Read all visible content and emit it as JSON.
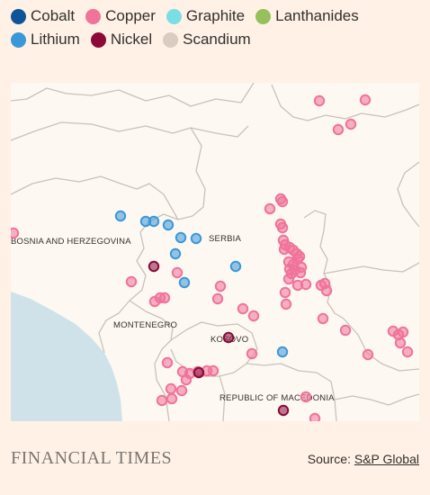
{
  "legend": [
    {
      "label": "Cobalt",
      "color": "#0f5499"
    },
    {
      "label": "Copper",
      "color": "#f0739a"
    },
    {
      "label": "Graphite",
      "color": "#78dfe3"
    },
    {
      "label": "Lanthanides",
      "color": "#96c05a"
    },
    {
      "label": "Lithium",
      "color": "#3b98d8"
    },
    {
      "label": "Nickel",
      "color": "#8b0a3a"
    },
    {
      "label": "Scandium",
      "color": "#d9cdc2"
    }
  ],
  "map": {
    "labels": {
      "bosnia": "BOSNIA AND HERZEGOVINA",
      "serbia": "SERBIA",
      "montenegro": "MONTENEGRO",
      "kosovo": "KOSOVO",
      "macedonia": "REPUBLIC OF MACEDONIA"
    },
    "colors": {
      "land": "#fdf8f2",
      "sea": "#cfe2ea",
      "border": "#c9c2ba"
    }
  },
  "sites": {
    "copper": [
      [
        343,
        20
      ],
      [
        394,
        19
      ],
      [
        364,
        52
      ],
      [
        378,
        46
      ],
      [
        3,
        167
      ],
      [
        288,
        140
      ],
      [
        300,
        129
      ],
      [
        302,
        132
      ],
      [
        302,
        161
      ],
      [
        300,
        157
      ],
      [
        303,
        175
      ],
      [
        305,
        180
      ],
      [
        304,
        185
      ],
      [
        310,
        183
      ],
      [
        314,
        186
      ],
      [
        318,
        190
      ],
      [
        321,
        193
      ],
      [
        309,
        199
      ],
      [
        314,
        202
      ],
      [
        319,
        196
      ],
      [
        323,
        205
      ],
      [
        312,
        212
      ],
      [
        310,
        207
      ],
      [
        316,
        208
      ],
      [
        322,
        211
      ],
      [
        309,
        218
      ],
      [
        319,
        225
      ],
      [
        305,
        233
      ],
      [
        328,
        224
      ],
      [
        345,
        225
      ],
      [
        349,
        223
      ],
      [
        351,
        231
      ],
      [
        306,
        246
      ],
      [
        347,
        262
      ],
      [
        372,
        275
      ],
      [
        425,
        276
      ],
      [
        431,
        280
      ],
      [
        436,
        277
      ],
      [
        433,
        289
      ],
      [
        441,
        299
      ],
      [
        397,
        302
      ],
      [
        185,
        211
      ],
      [
        233,
        226
      ],
      [
        230,
        240
      ],
      [
        160,
        243
      ],
      [
        166,
        239
      ],
      [
        171,
        239
      ],
      [
        134,
        221
      ],
      [
        258,
        251
      ],
      [
        270,
        259
      ],
      [
        268,
        301
      ],
      [
        174,
        311
      ],
      [
        191,
        321
      ],
      [
        195,
        330
      ],
      [
        190,
        342
      ],
      [
        178,
        340
      ],
      [
        179,
        351
      ],
      [
        168,
        353
      ],
      [
        199,
        323
      ],
      [
        208,
        321
      ],
      [
        218,
        320
      ],
      [
        225,
        320
      ],
      [
        328,
        349
      ],
      [
        338,
        373
      ]
    ],
    "lithium": [
      [
        122,
        148
      ],
      [
        150,
        154
      ],
      [
        159,
        154
      ],
      [
        175,
        158
      ],
      [
        189,
        172
      ],
      [
        206,
        173
      ],
      [
        183,
        190
      ],
      [
        250,
        204
      ],
      [
        193,
        222
      ],
      [
        302,
        299
      ]
    ],
    "nickel": [
      [
        159,
        204
      ],
      [
        242,
        283
      ],
      [
        209,
        322
      ],
      [
        303,
        364
      ]
    ]
  },
  "footer": {
    "brand": "FINANCIAL TIMES",
    "source_prefix": "Source: ",
    "source_link": "S&P Global"
  }
}
